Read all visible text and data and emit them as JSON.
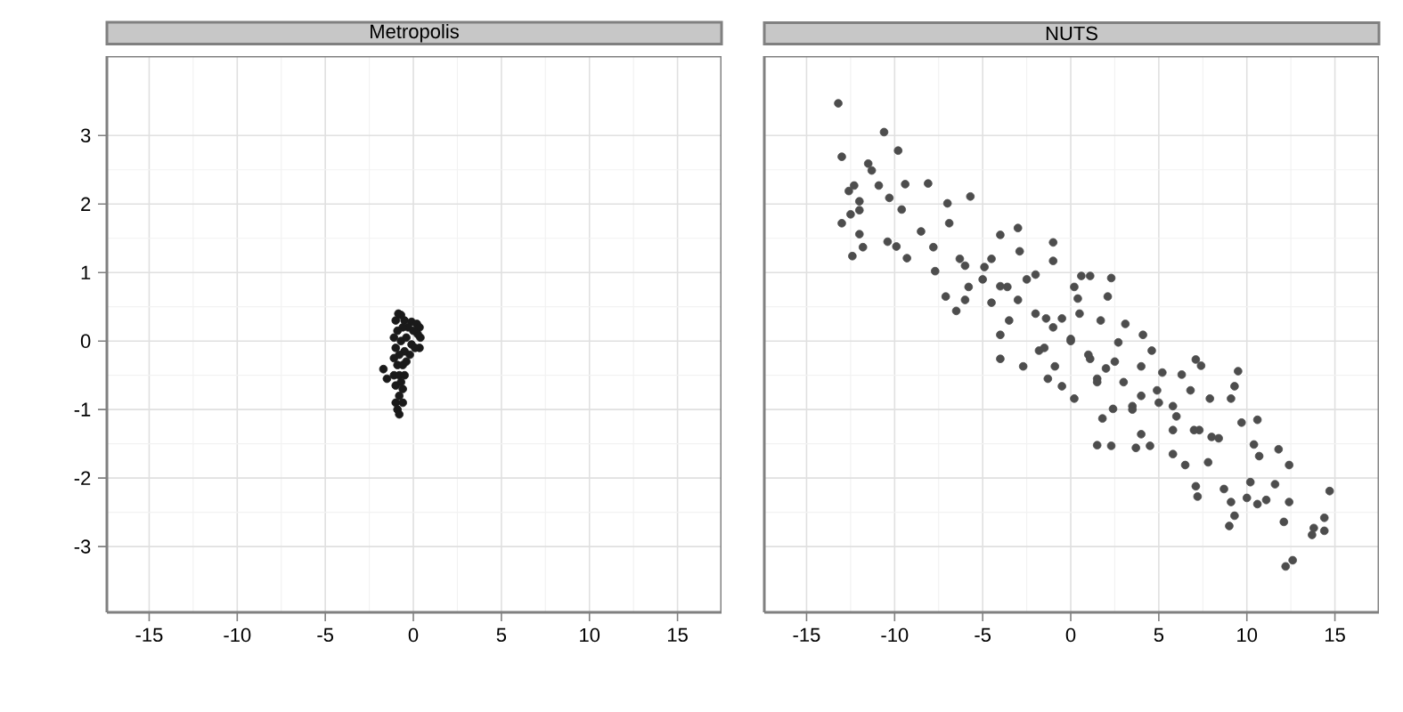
{
  "chart_data": [
    {
      "type": "scatter",
      "title": "Metropolis",
      "color": "#1a1a1a",
      "marker": "circle",
      "grid": true,
      "xlim": [
        -17.4,
        17.5
      ],
      "ylim": [
        -3.96,
        4.16
      ],
      "xticks": [
        -15,
        -10,
        -5,
        0,
        5,
        10,
        15
      ],
      "yticks": [
        -3,
        -2,
        -1,
        0,
        1,
        2,
        3
      ],
      "x": [
        -0.85,
        -0.7,
        -1.0,
        -0.5,
        -0.1,
        0.2,
        0.35,
        0.4,
        0.35,
        0.25,
        0.0,
        -0.3,
        -0.6,
        -0.9,
        -1.1,
        -1.0,
        -0.7,
        -0.4,
        -0.1,
        0.1,
        -0.2,
        -0.5,
        -0.8,
        -1.1,
        -0.9,
        -0.6,
        -0.4,
        -1.7,
        -1.5,
        -1.1,
        -0.8,
        -0.5,
        -1.0,
        -0.6,
        -0.8,
        -1.0,
        -0.6,
        -0.9,
        -0.8,
        -0.7
      ],
      "values": [
        0.4,
        0.38,
        0.3,
        0.3,
        0.28,
        0.25,
        0.2,
        0.05,
        -0.1,
        0.1,
        0.15,
        0.2,
        0.2,
        0.15,
        0.05,
        -0.1,
        0.0,
        0.05,
        -0.05,
        -0.1,
        -0.2,
        -0.15,
        -0.2,
        -0.25,
        -0.35,
        -0.35,
        -0.3,
        -0.41,
        -0.55,
        -0.5,
        -0.5,
        -0.5,
        -0.65,
        -0.7,
        -0.8,
        -0.9,
        -0.9,
        -1.0,
        -1.07,
        -0.6
      ]
    },
    {
      "type": "scatter",
      "title": "NUTS",
      "color": "#4d4d4d",
      "marker": "circle",
      "grid": true,
      "tick_labels": "x",
      "xlim": [
        -17.4,
        17.5
      ],
      "ylim": [
        -3.96,
        4.16
      ],
      "xticks": [
        -15,
        -10,
        -5,
        0,
        5,
        10,
        15
      ],
      "yticks": [
        -3,
        -2,
        -1,
        0,
        1,
        2,
        3
      ],
      "x": [
        -13.2,
        -10.6,
        -9.8,
        -13.0,
        -11.5,
        -11.3,
        -12.3,
        -12.6,
        -10.9,
        -9.4,
        -8.1,
        -12.0,
        -10.3,
        -12.0,
        -12.5,
        -13.0,
        -12.4,
        -11.8,
        -12.0,
        -10.4,
        -9.9,
        -9.3,
        -9.6,
        -8.5,
        -7.0,
        -5.7,
        -7.8,
        -6.9,
        -7.7,
        -6.3,
        -7.1,
        -6.5,
        -5.8,
        -4.9,
        -4.0,
        -3.0,
        -2.9,
        -4.5,
        -4.0,
        -4.0,
        -3.6,
        -2.7,
        -2.0,
        -1.0,
        -1.0,
        -1.4,
        -1.8,
        -0.9,
        -1.3,
        0.2,
        0.6,
        1.1,
        2.3,
        2.1,
        0.4,
        -0.5,
        0.0,
        1.1,
        0.2,
        -0.5,
        1.7,
        3.1,
        2.7,
        4.1,
        4.0,
        4.6,
        1.5,
        2.4,
        1.8,
        1.5,
        2.3,
        3.7,
        4.5,
        4.0,
        3.5,
        4.9,
        5.2,
        6.3,
        5.8,
        5.8,
        5.8,
        6.5,
        7.1,
        7.4,
        6.8,
        7.9,
        7.3,
        7.8,
        7.1,
        7.2,
        8.7,
        8.4,
        9.1,
        9.5,
        9.3,
        9.7,
        10.6,
        10.4,
        10.7,
        10.2,
        9.1,
        9.3,
        9.0,
        10.0,
        10.6,
        11.1,
        11.6,
        11.8,
        12.4,
        12.4,
        12.1,
        12.6,
        12.2,
        13.7,
        13.8,
        14.4,
        14.4,
        14.7,
        -5,
        -4,
        -3,
        -2,
        -1,
        0,
        1,
        2,
        3,
        4,
        5,
        6,
        7,
        8,
        -6,
        -3.5,
        -2.5,
        -1.5,
        0.5,
        1.5,
        2.5,
        3.5,
        -4.5,
        -6
      ],
      "values": [
        3.47,
        3.05,
        2.78,
        2.69,
        2.59,
        2.49,
        2.27,
        2.19,
        2.27,
        2.29,
        2.3,
        2.04,
        2.09,
        1.91,
        1.85,
        1.72,
        1.24,
        1.37,
        1.56,
        1.45,
        1.38,
        1.21,
        1.92,
        1.6,
        2.01,
        2.11,
        1.37,
        1.72,
        1.02,
        1.2,
        0.65,
        0.44,
        0.79,
        1.08,
        1.55,
        1.65,
        1.31,
        0.56,
        0.09,
        -0.26,
        0.79,
        -0.37,
        0.97,
        1.44,
        1.17,
        0.33,
        -0.14,
        -0.37,
        -0.55,
        0.79,
        0.95,
        0.95,
        0.92,
        0.65,
        0.62,
        0.33,
        0.03,
        -0.26,
        -0.84,
        -0.66,
        0.3,
        0.25,
        -0.02,
        0.09,
        -0.37,
        -0.14,
        -0.55,
        -0.99,
        -1.13,
        -1.52,
        -1.53,
        -1.56,
        -1.53,
        -1.36,
        -0.95,
        -0.72,
        -0.46,
        -0.49,
        -0.95,
        -1.3,
        -1.65,
        -1.81,
        -0.27,
        -0.36,
        -0.72,
        -0.84,
        -1.3,
        -1.77,
        -2.12,
        -2.27,
        -2.16,
        -1.42,
        -0.84,
        -0.44,
        -0.66,
        -1.19,
        -1.15,
        -1.51,
        -1.68,
        -2.06,
        -2.35,
        -2.55,
        -2.7,
        -2.29,
        -2.38,
        -2.32,
        -2.09,
        -1.58,
        -1.81,
        -2.35,
        -2.64,
        -3.2,
        -3.29,
        -2.83,
        -2.73,
        -2.77,
        -2.58,
        -2.19,
        0.9,
        0.8,
        0.6,
        0.4,
        0.2,
        0.0,
        -0.2,
        -0.4,
        -0.6,
        -0.8,
        -0.9,
        -1.1,
        -1.3,
        -1.4,
        1.1,
        0.3,
        0.9,
        -0.1,
        0.4,
        -0.6,
        -0.3,
        -1.0,
        1.2,
        0.6
      ]
    }
  ]
}
